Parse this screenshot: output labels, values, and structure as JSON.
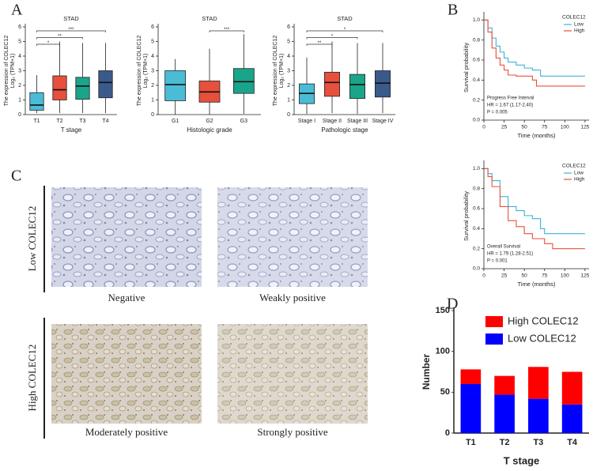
{
  "panel_labels": [
    "A",
    "B",
    "C",
    "D"
  ],
  "chart_data": [
    {
      "type": "box",
      "title": "STAD",
      "ylabel": "The expression of COLEC12",
      "ylabel2": "Log₂ (TPM+1)",
      "xlabel": "T stage",
      "categories": [
        "T1",
        "T2",
        "T3",
        "T4"
      ],
      "colors": [
        "#4bbcd6",
        "#e6503c",
        "#1aa58a",
        "#3b5a8c"
      ],
      "boxes": [
        {
          "min": 0.1,
          "q1": 0.3,
          "median": 0.65,
          "q3": 1.5,
          "max": 2.7
        },
        {
          "min": 0.1,
          "q1": 1.0,
          "median": 1.7,
          "q3": 2.65,
          "max": 5.0
        },
        {
          "min": 0.1,
          "q1": 1.05,
          "median": 1.95,
          "q3": 2.55,
          "max": 4.9
        },
        {
          "min": 0.1,
          "q1": 1.15,
          "median": 2.2,
          "q3": 3.0,
          "max": 4.9
        }
      ],
      "significance": [
        {
          "from": 0,
          "to": 1,
          "label": "*"
        },
        {
          "from": 0,
          "to": 2,
          "label": "**"
        },
        {
          "from": 0,
          "to": 3,
          "label": "***"
        }
      ],
      "ylim": [
        0,
        6
      ],
      "yticks": [
        0,
        1,
        2,
        3,
        4,
        5,
        6
      ]
    },
    {
      "type": "box",
      "title": "STAD",
      "ylabel": "The expression of COLEC12",
      "ylabel2": "Log₂ (TPM+1)",
      "xlabel": "Histologic grade",
      "categories": [
        "G1",
        "G2",
        "G3"
      ],
      "colors": [
        "#4bbcd6",
        "#e6503c",
        "#1aa58a"
      ],
      "boxes": [
        {
          "min": 0.0,
          "q1": 0.95,
          "median": 2.05,
          "q3": 3.0,
          "max": 3.8
        },
        {
          "min": 0.0,
          "q1": 0.85,
          "median": 1.55,
          "q3": 2.3,
          "max": 4.5
        },
        {
          "min": 0.05,
          "q1": 1.45,
          "median": 2.25,
          "q3": 3.15,
          "max": 5.5
        }
      ],
      "significance": [
        {
          "from": 1,
          "to": 2,
          "label": "***"
        }
      ],
      "ylim": [
        0,
        6
      ],
      "yticks": [
        0,
        1,
        2,
        3,
        4,
        5,
        6
      ]
    },
    {
      "type": "box",
      "title": "STAD",
      "ylabel": "The expression of COLEC12",
      "ylabel2": "Log₂ (TPM+1)",
      "xlabel": "Pathologic stage",
      "categories": [
        "Stage I",
        "Stage II",
        "Stage III",
        "Stage IV"
      ],
      "colors": [
        "#4bbcd6",
        "#e6503c",
        "#1aa58a",
        "#3b5a8c"
      ],
      "boxes": [
        {
          "min": 0.05,
          "q1": 0.75,
          "median": 1.45,
          "q3": 2.1,
          "max": 3.9
        },
        {
          "min": 0.1,
          "q1": 1.25,
          "median": 2.2,
          "q3": 2.9,
          "max": 5.0
        },
        {
          "min": 0.05,
          "q1": 1.1,
          "median": 2.05,
          "q3": 2.75,
          "max": 4.9
        },
        {
          "min": 0.1,
          "q1": 1.2,
          "median": 2.15,
          "q3": 3.0,
          "max": 4.9
        }
      ],
      "significance": [
        {
          "from": 0,
          "to": 1,
          "label": "**"
        },
        {
          "from": 0,
          "to": 2,
          "label": "*"
        },
        {
          "from": 0,
          "to": 3,
          "label": "*"
        }
      ],
      "ylim": [
        0,
        6
      ],
      "yticks": [
        0,
        1,
        2,
        3,
        4,
        5,
        6
      ]
    },
    {
      "type": "km",
      "ylabel": "Survival probability",
      "xlabel": "Time (months)",
      "legend_title": "COLEC12",
      "annotations": [
        "Progress Free Interval",
        "HR = 1.67 (1.17-2.40)",
        "P = 0.005"
      ],
      "series": [
        {
          "name": "Low",
          "color": "#3bb3d6",
          "x": [
            0,
            5,
            10,
            15,
            20,
            25,
            30,
            40,
            50,
            60,
            70,
            80,
            125
          ],
          "values": [
            1,
            0.92,
            0.82,
            0.74,
            0.68,
            0.62,
            0.58,
            0.55,
            0.52,
            0.5,
            0.44,
            0.44,
            0.44
          ]
        },
        {
          "name": "High",
          "color": "#e8503a",
          "x": [
            0,
            5,
            10,
            15,
            20,
            25,
            30,
            40,
            60,
            65,
            125
          ],
          "values": [
            1,
            0.88,
            0.72,
            0.62,
            0.55,
            0.5,
            0.45,
            0.44,
            0.4,
            0.34,
            0.34
          ]
        }
      ],
      "xlim": [
        0,
        130
      ],
      "xticks": [
        0,
        25,
        50,
        75,
        100,
        125
      ],
      "ylim": [
        0,
        1.05
      ],
      "yticks": [
        {
          "value": 0,
          "label": "0.0"
        },
        0.2,
        0.4,
        0.6,
        0.8,
        {
          "value": 1,
          "label": "1.0"
        }
      ]
    },
    {
      "type": "km",
      "ylabel": "Survival probability",
      "xlabel": "Time (months)",
      "legend_title": "COLEC12",
      "annotations": [
        "Overall Survival",
        "HR = 1.79 (1.28-2.51)",
        "P = 0.001"
      ],
      "series": [
        {
          "name": "Low",
          "color": "#3bb3d6",
          "x": [
            0,
            5,
            10,
            20,
            30,
            40,
            50,
            60,
            70,
            75,
            125
          ],
          "values": [
            1,
            0.95,
            0.88,
            0.72,
            0.62,
            0.58,
            0.53,
            0.5,
            0.4,
            0.35,
            0.35
          ]
        },
        {
          "name": "High",
          "color": "#e8503a",
          "x": [
            0,
            5,
            10,
            20,
            30,
            40,
            50,
            60,
            75,
            85,
            125
          ],
          "values": [
            1,
            0.92,
            0.82,
            0.62,
            0.48,
            0.42,
            0.35,
            0.3,
            0.25,
            0.2,
            0.2
          ]
        }
      ],
      "xlim": [
        0,
        130
      ],
      "xticks": [
        0,
        25,
        50,
        75,
        100,
        125
      ],
      "ylim": [
        0,
        1.05
      ],
      "yticks": [
        {
          "value": 0,
          "label": "0.0"
        },
        0.2,
        0.4,
        0.6,
        0.8,
        {
          "value": 1,
          "label": "1.0"
        }
      ]
    },
    {
      "type": "stacked_bar",
      "ylabel": "Number",
      "xlabel": "T stage",
      "legend": "upper left",
      "categories": [
        "T1",
        "T2",
        "T3",
        "T4"
      ],
      "series": [
        {
          "name": "Low COLEC12",
          "color": "#0000ff",
          "values": [
            60,
            47,
            42,
            35
          ]
        },
        {
          "name": "High COLEC12",
          "color": "#ff0000",
          "values": [
            18,
            23,
            39,
            40
          ]
        }
      ],
      "ylim": [
        0,
        150
      ],
      "yticks": [
        0,
        50,
        100,
        150
      ]
    }
  ],
  "ihc": {
    "row_labels": [
      "Low COLEC12",
      "High COLEC12"
    ],
    "captions": [
      "Negative",
      "Weakly positive",
      "Moderately positive",
      "Strongly positive"
    ]
  }
}
